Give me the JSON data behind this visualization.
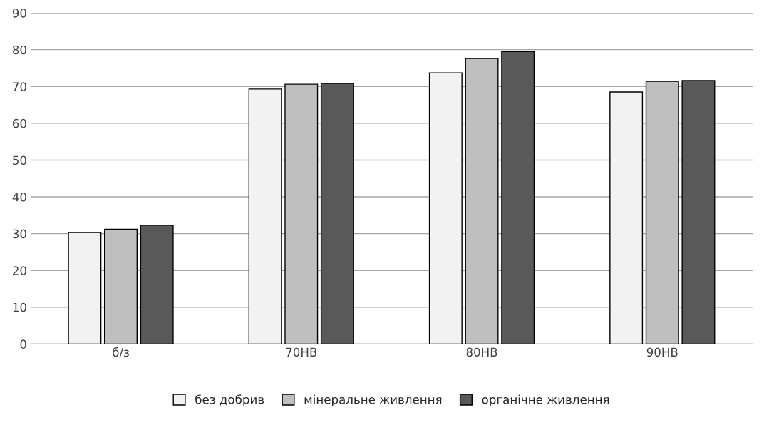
{
  "chart_data": {
    "type": "bar",
    "categories": [
      "б/з",
      "70НВ",
      "80НВ",
      "90НВ"
    ],
    "series": [
      {
        "name": "без добрив",
        "color": "#f2f2f2",
        "values": [
          30.3,
          69.3,
          73.7,
          68.5
        ]
      },
      {
        "name": "мінеральне живлення",
        "color": "#bfbfbf",
        "values": [
          31.2,
          70.6,
          77.6,
          71.4
        ]
      },
      {
        "name": "органічне живлення",
        "color": "#595959",
        "values": [
          32.3,
          70.8,
          79.5,
          71.6
        ]
      }
    ],
    "ylim": [
      0,
      90
    ],
    "yticks": [
      0,
      10,
      20,
      30,
      40,
      50,
      60,
      70,
      80,
      90
    ],
    "grid": "y",
    "legend": "bottom"
  }
}
